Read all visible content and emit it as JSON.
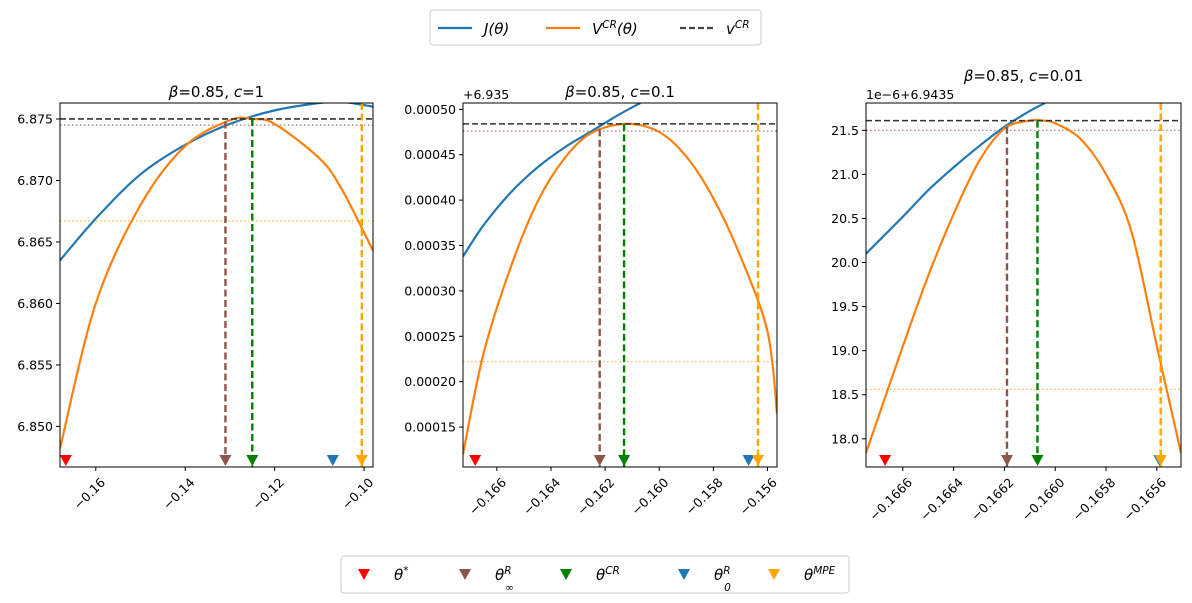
{
  "legend_top": [
    {
      "label": "J(θ)",
      "main": "J(θ)",
      "sup": "",
      "sub": "",
      "color": "#1f77b4",
      "style": "solid"
    },
    {
      "label": "V^CR(θ)",
      "main": "V",
      "sup": "CR",
      "sub": "",
      "tail": "(θ)",
      "color": "#ff7f0e",
      "style": "solid"
    },
    {
      "label": "v^CR",
      "main": "v",
      "sup": "CR",
      "sub": "",
      "tail": "",
      "color": "#444444",
      "style": "dashed"
    }
  ],
  "legend_bottom": [
    {
      "label": "θ*",
      "main": "θ",
      "sup": "*",
      "sub": "",
      "color": "#ff0000"
    },
    {
      "label": "θ^R_∞",
      "main": "θ",
      "sup": "R",
      "sub": "∞",
      "color": "#8c564b"
    },
    {
      "label": "θ^CR",
      "main": "θ",
      "sup": "CR",
      "sub": "",
      "color": "#008000"
    },
    {
      "label": "θ^R_0",
      "main": "θ",
      "sup": "R",
      "sub": "0",
      "color": "#1f77b4"
    },
    {
      "label": "θ^MPE",
      "main": "θ",
      "sup": "MPE",
      "sub": "",
      "color": "#ffa500"
    }
  ],
  "colors": {
    "J": "#1f77b4",
    "V": "#ff7f0e",
    "vline": "#333333",
    "theta_star": "#ff0000",
    "theta_R_inf": "#8c564b",
    "theta_CR": "#008000",
    "theta_R_0": "#1f77b4",
    "theta_MPE": "#ffa500"
  },
  "chart_data": [
    {
      "type": "line",
      "title": "β=0.85, c=1",
      "title_parts": {
        "beta": "β",
        "beta_val": "=0.85, ",
        "c": "c",
        "c_val": "=1"
      },
      "offset_label": "",
      "xlim": [
        -0.168,
        -0.098
      ],
      "ylim": [
        6.8467,
        6.8763
      ],
      "xticks": [
        -0.16,
        -0.14,
        -0.12,
        -0.1
      ],
      "xtick_labels": [
        "−0.16",
        "−0.14",
        "−0.12",
        "−0.10"
      ],
      "yticks": [
        6.85,
        6.855,
        6.86,
        6.865,
        6.87,
        6.875
      ],
      "ytick_labels": [
        "6.850",
        "6.855",
        "6.860",
        "6.865",
        "6.870",
        "6.875"
      ],
      "J_curve": {
        "x": [
          -0.168,
          -0.16,
          -0.15,
          -0.14,
          -0.13,
          -0.12,
          -0.11,
          -0.105,
          -0.098
        ],
        "y": [
          6.8635,
          6.8669,
          6.8705,
          6.8729,
          6.8746,
          6.8757,
          6.8763,
          6.8764,
          6.876
        ]
      },
      "V_curve": {
        "x": [
          -0.168,
          -0.16,
          -0.15,
          -0.14,
          -0.13,
          -0.125,
          -0.12,
          -0.11,
          -0.105,
          -0.098
        ],
        "y": [
          6.8482,
          6.86,
          6.868,
          6.8728,
          6.8749,
          6.875,
          6.8746,
          6.8718,
          6.8693,
          6.8643
        ]
      },
      "v_CR": 6.875,
      "dotted_brown": 6.8745,
      "dotted_orange": 6.8667,
      "theta_R_inf": {
        "x": -0.131,
        "y_top": 6.8748
      },
      "theta_CR": {
        "x": -0.125,
        "y_top": 6.875
      },
      "theta_MPE": {
        "x": -0.1005,
        "y_top": 6.8763
      },
      "markers": {
        "theta_star": -0.1667,
        "theta_R_inf": -0.131,
        "theta_CR": -0.125,
        "theta_R_0": -0.107,
        "theta_MPE": -0.1005
      }
    },
    {
      "type": "line",
      "title": "β=0.85, c=0.1",
      "title_parts": {
        "beta": "β",
        "beta_val": "=0.85, ",
        "c": "c",
        "c_val": "=0.1"
      },
      "offset_label": "+6.935",
      "xlim": [
        -0.16725,
        -0.15565
      ],
      "ylim": [
        0.000106,
        0.000507
      ],
      "xticks": [
        -0.166,
        -0.164,
        -0.162,
        -0.16,
        -0.158,
        -0.156
      ],
      "xtick_labels": [
        "−0.166",
        "−0.164",
        "−0.162",
        "−0.160",
        "−0.158",
        "−0.156"
      ],
      "yticks": [
        0.00015,
        0.0002,
        0.00025,
        0.0003,
        0.00035,
        0.0004,
        0.00045,
        0.0005
      ],
      "ytick_labels": [
        "0.00015",
        "0.00020",
        "0.00025",
        "0.00030",
        "0.00035",
        "0.00040",
        "0.00045",
        "0.00050"
      ],
      "J_curve": {
        "x": [
          -0.16725,
          -0.1665,
          -0.1655,
          -0.1645,
          -0.1635,
          -0.1625,
          -0.1615,
          -0.1607
        ],
        "y": [
          0.000338,
          0.000372,
          0.000408,
          0.000436,
          0.000458,
          0.000476,
          0.000494,
          0.000507
        ]
      },
      "V_curve": {
        "x": [
          -0.16725,
          -0.1665,
          -0.1655,
          -0.1645,
          -0.1635,
          -0.1625,
          -0.1612,
          -0.16,
          -0.159,
          -0.158,
          -0.157,
          -0.156,
          -0.15565
        ],
        "y": [
          0.00012,
          0.00023,
          0.000325,
          0.000398,
          0.000446,
          0.000474,
          0.000484,
          0.000475,
          0.000448,
          0.000402,
          0.000338,
          0.000255,
          0.000165
        ]
      },
      "v_CR": 0.000484,
      "dotted_brown": 0.000476,
      "dotted_orange": 0.000222,
      "theta_R_inf": {
        "x": -0.1622,
        "y_top": 0.000478
      },
      "theta_CR": {
        "x": -0.1613,
        "y_top": 0.000484
      },
      "theta_MPE": {
        "x": -0.15635,
        "y_top": 0.000507
      },
      "markers": {
        "theta_star": -0.1668,
        "theta_R_inf": -0.1622,
        "theta_CR": -0.1613,
        "theta_R_0": -0.1567,
        "theta_MPE": -0.15635
      }
    },
    {
      "type": "line",
      "title": "β=0.85, c=0.01",
      "title_parts": {
        "beta": "β",
        "beta_val": "=0.85, ",
        "c": "c",
        "c_val": "=0.01"
      },
      "offset_label": "1e−6+6.9435",
      "xlim": [
        -0.166745,
        -0.165505
      ],
      "ylim": [
        17.68,
        21.81
      ],
      "xticks": [
        -0.1666,
        -0.1664,
        -0.1662,
        -0.166,
        -0.1658,
        -0.1656
      ],
      "xtick_labels": [
        "−0.1666",
        "−0.1664",
        "−0.1662",
        "−0.1660",
        "−0.1658",
        "−0.1656"
      ],
      "yticks": [
        18.0,
        18.5,
        19.0,
        19.5,
        20.0,
        20.5,
        21.0,
        21.5
      ],
      "ytick_labels": [
        "18.0",
        "18.5",
        "19.0",
        "19.5",
        "20.0",
        "20.5",
        "21.0",
        "21.5"
      ],
      "J_curve": {
        "x": [
          -0.166745,
          -0.1666,
          -0.1665,
          -0.1664,
          -0.1663,
          -0.1662,
          -0.1661,
          -0.16604
        ],
        "y": [
          20.1,
          20.52,
          20.82,
          21.08,
          21.32,
          21.54,
          21.72,
          21.81
        ]
      },
      "V_curve": {
        "x": [
          -0.166745,
          -0.1666,
          -0.1665,
          -0.1664,
          -0.1663,
          -0.1662,
          -0.1661,
          -0.16605,
          -0.166,
          -0.1659,
          -0.1658,
          -0.1657,
          -0.1656,
          -0.165505
        ],
        "y": [
          17.84,
          19.05,
          19.85,
          20.55,
          21.15,
          21.52,
          21.61,
          21.61,
          21.58,
          21.4,
          21.0,
          20.35,
          19.05,
          17.84
        ]
      },
      "v_CR": 21.61,
      "dotted_brown": 21.5,
      "dotted_orange": 18.56,
      "theta_R_inf": {
        "x": -0.16619,
        "y_top": 21.54
      },
      "theta_CR": {
        "x": -0.16607,
        "y_top": 21.61
      },
      "theta_MPE": {
        "x": -0.165585,
        "y_top": 21.81
      },
      "markers": {
        "theta_star": -0.16667,
        "theta_R_inf": -0.16619,
        "theta_CR": -0.16607,
        "theta_R_0": -0.16559,
        "theta_MPE": -0.165585
      }
    }
  ]
}
